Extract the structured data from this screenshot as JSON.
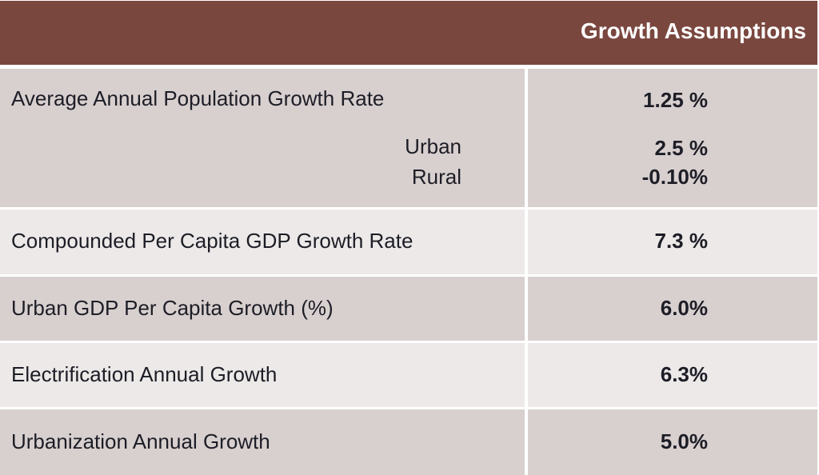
{
  "header": {
    "title": "Growth Assumptions",
    "color": "#7a473f"
  },
  "rows": [
    {
      "label": "Average Annual Population Growth Rate",
      "value": "1.25 %",
      "sub": [
        {
          "label": "Urban",
          "value": "2.5 %"
        },
        {
          "label": "Rural",
          "value": "-0.10%"
        }
      ]
    },
    {
      "label": "Compounded Per Capita GDP Growth Rate",
      "value": "7.3 %"
    },
    {
      "label": "Urban GDP Per Capita Growth (%)",
      "value": "6.0%"
    },
    {
      "label": "Electrification Annual Growth",
      "value": "6.3%"
    },
    {
      "label": "Urbanization Annual Growth",
      "value": "5.0%"
    }
  ]
}
